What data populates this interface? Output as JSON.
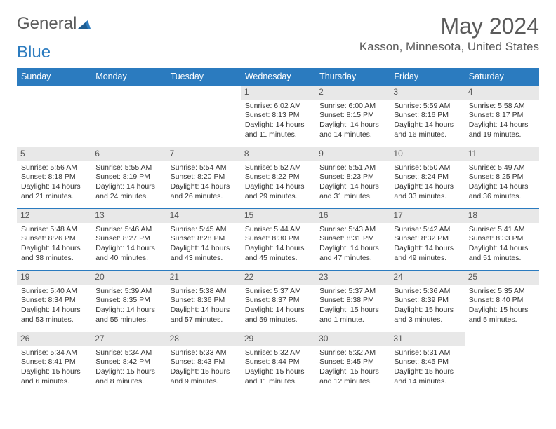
{
  "logo": {
    "word1": "General",
    "word2": "Blue"
  },
  "title": "May 2024",
  "location": "Kasson, Minnesota, United States",
  "colors": {
    "header_bg": "#2b7bbf",
    "header_fg": "#ffffff",
    "daynum_bg": "#e8e8e8",
    "daynum_fg": "#555555",
    "text": "#333333",
    "title_color": "#5a5a5a",
    "row_border": "#2b7bbf"
  },
  "day_headers": [
    "Sunday",
    "Monday",
    "Tuesday",
    "Wednesday",
    "Thursday",
    "Friday",
    "Saturday"
  ],
  "weeks": [
    [
      {
        "num": "",
        "details": ""
      },
      {
        "num": "",
        "details": ""
      },
      {
        "num": "",
        "details": ""
      },
      {
        "num": "1",
        "details": "Sunrise: 6:02 AM\nSunset: 8:13 PM\nDaylight: 14 hours and 11 minutes."
      },
      {
        "num": "2",
        "details": "Sunrise: 6:00 AM\nSunset: 8:15 PM\nDaylight: 14 hours and 14 minutes."
      },
      {
        "num": "3",
        "details": "Sunrise: 5:59 AM\nSunset: 8:16 PM\nDaylight: 14 hours and 16 minutes."
      },
      {
        "num": "4",
        "details": "Sunrise: 5:58 AM\nSunset: 8:17 PM\nDaylight: 14 hours and 19 minutes."
      }
    ],
    [
      {
        "num": "5",
        "details": "Sunrise: 5:56 AM\nSunset: 8:18 PM\nDaylight: 14 hours and 21 minutes."
      },
      {
        "num": "6",
        "details": "Sunrise: 5:55 AM\nSunset: 8:19 PM\nDaylight: 14 hours and 24 minutes."
      },
      {
        "num": "7",
        "details": "Sunrise: 5:54 AM\nSunset: 8:20 PM\nDaylight: 14 hours and 26 minutes."
      },
      {
        "num": "8",
        "details": "Sunrise: 5:52 AM\nSunset: 8:22 PM\nDaylight: 14 hours and 29 minutes."
      },
      {
        "num": "9",
        "details": "Sunrise: 5:51 AM\nSunset: 8:23 PM\nDaylight: 14 hours and 31 minutes."
      },
      {
        "num": "10",
        "details": "Sunrise: 5:50 AM\nSunset: 8:24 PM\nDaylight: 14 hours and 33 minutes."
      },
      {
        "num": "11",
        "details": "Sunrise: 5:49 AM\nSunset: 8:25 PM\nDaylight: 14 hours and 36 minutes."
      }
    ],
    [
      {
        "num": "12",
        "details": "Sunrise: 5:48 AM\nSunset: 8:26 PM\nDaylight: 14 hours and 38 minutes."
      },
      {
        "num": "13",
        "details": "Sunrise: 5:46 AM\nSunset: 8:27 PM\nDaylight: 14 hours and 40 minutes."
      },
      {
        "num": "14",
        "details": "Sunrise: 5:45 AM\nSunset: 8:28 PM\nDaylight: 14 hours and 43 minutes."
      },
      {
        "num": "15",
        "details": "Sunrise: 5:44 AM\nSunset: 8:30 PM\nDaylight: 14 hours and 45 minutes."
      },
      {
        "num": "16",
        "details": "Sunrise: 5:43 AM\nSunset: 8:31 PM\nDaylight: 14 hours and 47 minutes."
      },
      {
        "num": "17",
        "details": "Sunrise: 5:42 AM\nSunset: 8:32 PM\nDaylight: 14 hours and 49 minutes."
      },
      {
        "num": "18",
        "details": "Sunrise: 5:41 AM\nSunset: 8:33 PM\nDaylight: 14 hours and 51 minutes."
      }
    ],
    [
      {
        "num": "19",
        "details": "Sunrise: 5:40 AM\nSunset: 8:34 PM\nDaylight: 14 hours and 53 minutes."
      },
      {
        "num": "20",
        "details": "Sunrise: 5:39 AM\nSunset: 8:35 PM\nDaylight: 14 hours and 55 minutes."
      },
      {
        "num": "21",
        "details": "Sunrise: 5:38 AM\nSunset: 8:36 PM\nDaylight: 14 hours and 57 minutes."
      },
      {
        "num": "22",
        "details": "Sunrise: 5:37 AM\nSunset: 8:37 PM\nDaylight: 14 hours and 59 minutes."
      },
      {
        "num": "23",
        "details": "Sunrise: 5:37 AM\nSunset: 8:38 PM\nDaylight: 15 hours and 1 minute."
      },
      {
        "num": "24",
        "details": "Sunrise: 5:36 AM\nSunset: 8:39 PM\nDaylight: 15 hours and 3 minutes."
      },
      {
        "num": "25",
        "details": "Sunrise: 5:35 AM\nSunset: 8:40 PM\nDaylight: 15 hours and 5 minutes."
      }
    ],
    [
      {
        "num": "26",
        "details": "Sunrise: 5:34 AM\nSunset: 8:41 PM\nDaylight: 15 hours and 6 minutes."
      },
      {
        "num": "27",
        "details": "Sunrise: 5:34 AM\nSunset: 8:42 PM\nDaylight: 15 hours and 8 minutes."
      },
      {
        "num": "28",
        "details": "Sunrise: 5:33 AM\nSunset: 8:43 PM\nDaylight: 15 hours and 9 minutes."
      },
      {
        "num": "29",
        "details": "Sunrise: 5:32 AM\nSunset: 8:44 PM\nDaylight: 15 hours and 11 minutes."
      },
      {
        "num": "30",
        "details": "Sunrise: 5:32 AM\nSunset: 8:45 PM\nDaylight: 15 hours and 12 minutes."
      },
      {
        "num": "31",
        "details": "Sunrise: 5:31 AM\nSunset: 8:45 PM\nDaylight: 15 hours and 14 minutes."
      },
      {
        "num": "",
        "details": ""
      }
    ]
  ]
}
